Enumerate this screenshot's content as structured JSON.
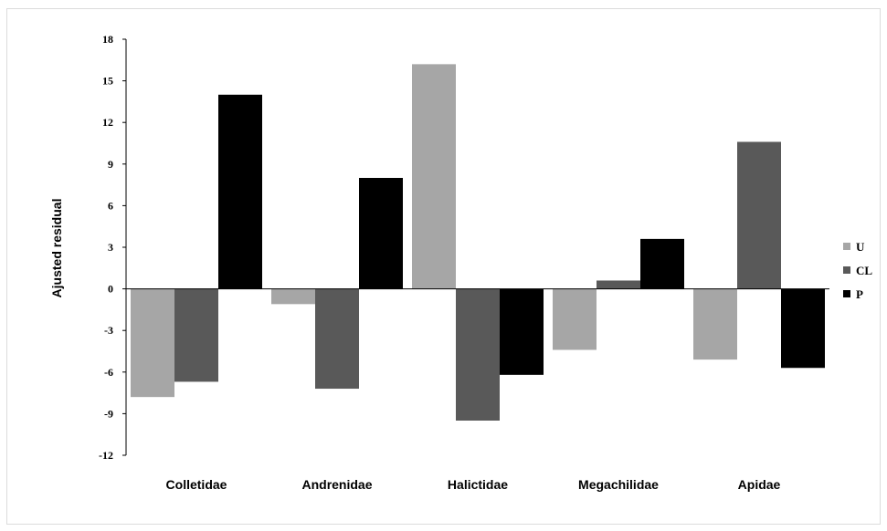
{
  "chart_data": {
    "type": "bar",
    "title": "",
    "xlabel": "",
    "ylabel": "Ajusted residual",
    "ylim": [
      -12,
      18
    ],
    "yticks": [
      18,
      15,
      12,
      9,
      6,
      3,
      0,
      -3,
      -6,
      -9,
      -12
    ],
    "grid": false,
    "legend_position": "right",
    "categories": [
      "Colletidae",
      "Andrenidae",
      "Halictidae",
      "Megachilidae",
      "Apidae"
    ],
    "series": [
      {
        "name": "U",
        "color": "#a6a6a6",
        "values": [
          -7.8,
          -1.1,
          16.2,
          -4.4,
          -5.1
        ]
      },
      {
        "name": "CL",
        "color": "#595959",
        "values": [
          -6.7,
          -7.2,
          -9.5,
          0.6,
          10.6
        ]
      },
      {
        "name": "P",
        "color": "#000000",
        "values": [
          14.0,
          8.0,
          -6.2,
          3.6,
          -5.7
        ]
      }
    ]
  }
}
